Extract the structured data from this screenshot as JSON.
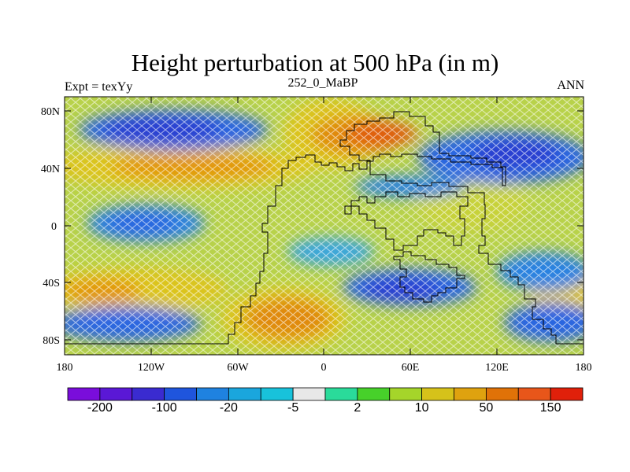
{
  "title": "Height perturbation at 500 hPa (in m)",
  "subtitle_left": "Expt = texYy",
  "subtitle_center": "252_0_MaBP",
  "subtitle_right": "ANN",
  "y_ticks": [
    "80N",
    "40N",
    "0",
    "40S",
    "80S"
  ],
  "x_ticks": [
    "180",
    "120W",
    "60W",
    "0",
    "60E",
    "120E",
    "180"
  ],
  "colorbar": {
    "colors": [
      "#7a0ddb",
      "#5a18d6",
      "#3a2bd0",
      "#1f55dd",
      "#1f82e0",
      "#1aa6dd",
      "#18c2db",
      "#e8e8e8",
      "#2adb9a",
      "#47d12a",
      "#a5d52a",
      "#d6c21a",
      "#dfa20f",
      "#e07208",
      "#e8561a",
      "#e0200a"
    ],
    "labels": [
      "-200",
      "-100",
      "-20",
      "-5",
      "2",
      "10",
      "50",
      "150"
    ]
  },
  "colors": {
    "background_field": "#b8d24a",
    "positive": "#e08a0c",
    "strong_positive": "#e05a0a",
    "negative": "#2a66e0",
    "strong_negative": "#2a3ed0"
  }
}
